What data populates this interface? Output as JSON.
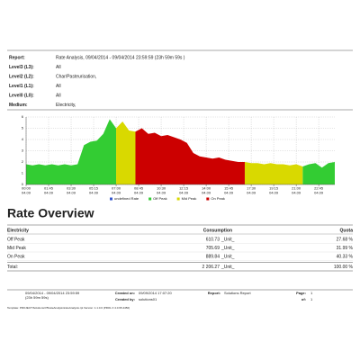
{
  "header": {
    "rows": [
      {
        "label": "Report:",
        "value": "Rate Analysis, 09/04/2014 - 09/04/2014 23:59:59 (23h 59m 59s )"
      },
      {
        "label": "Level3 (L3):",
        "value": "All"
      },
      {
        "label": "Level2 (L2):",
        "value": "Char/Pasteurisation,"
      },
      {
        "label": "Level1 (L1):",
        "value": "All"
      },
      {
        "label": "Level0 (L0):",
        "value": "All"
      },
      {
        "label": "Medium:",
        "value": "Electricity,"
      }
    ]
  },
  "chart_data": {
    "type": "area",
    "x": [
      0,
      0.5,
      1,
      1.5,
      2,
      2.5,
      3,
      3.5,
      4,
      4.5,
      5,
      5.5,
      6,
      6.5,
      7,
      7.5,
      8,
      8.5,
      9,
      9.5,
      10,
      10.5,
      11,
      11.5,
      12,
      12.5,
      13,
      13.5,
      14,
      14.5,
      15,
      15.5,
      16,
      16.5,
      17,
      17.5,
      18,
      18.5,
      19,
      19.5,
      20,
      20.5,
      21,
      21.5,
      22,
      22.5,
      23,
      23.5,
      24
    ],
    "xlim": [
      0,
      24
    ],
    "xticks": [
      {
        "value": 0,
        "label": "00:00"
      },
      {
        "value": 1.75,
        "label": "01:45"
      },
      {
        "value": 3.5,
        "label": "03:30"
      },
      {
        "value": 5.25,
        "label": "05:15"
      },
      {
        "value": 7,
        "label": "07:00"
      },
      {
        "value": 8.75,
        "label": "08:45"
      },
      {
        "value": 10.5,
        "label": "10:30"
      },
      {
        "value": 12.25,
        "label": "12:15"
      },
      {
        "value": 14,
        "label": "14:00"
      },
      {
        "value": 15.75,
        "label": "15:45"
      },
      {
        "value": 17.5,
        "label": "17:30"
      },
      {
        "value": 19.25,
        "label": "19:15"
      },
      {
        "value": 21,
        "label": "21:00"
      },
      {
        "value": 22.75,
        "label": "22:45"
      }
    ],
    "xtick_dates": [
      "04.09",
      "04.09",
      "04.09",
      "04.09",
      "04.09",
      "04.09",
      "04.09",
      "04.09",
      "04.09",
      "04.09",
      "04.09",
      "04.09",
      "04.09",
      "04.09"
    ],
    "ylim": [
      0,
      6
    ],
    "yticks": [
      0,
      1,
      2,
      3,
      4,
      5,
      6
    ],
    "grid": true,
    "legend": "bottom",
    "series": [
      {
        "name": "undefined Rate",
        "color": "#3355cc",
        "values": [
          null,
          null,
          null,
          null,
          null,
          null,
          null,
          null,
          null,
          null,
          null,
          null,
          null,
          null,
          null,
          null,
          null,
          null,
          null,
          null,
          null,
          null,
          null,
          null,
          null,
          null,
          null,
          null,
          null,
          null,
          null,
          null,
          null,
          null,
          null,
          null,
          null,
          null,
          null,
          null,
          null,
          null,
          null,
          null,
          null,
          null,
          null,
          null,
          null
        ]
      },
      {
        "name": "Off Peak",
        "color": "#33cc33",
        "values": [
          1.8,
          1.7,
          1.8,
          1.7,
          1.8,
          1.7,
          1.8,
          1.7,
          1.8,
          3.5,
          3.8,
          3.9,
          4.5,
          5.8,
          5.0,
          null,
          null,
          null,
          null,
          null,
          null,
          null,
          null,
          null,
          null,
          null,
          null,
          null,
          null,
          null,
          null,
          null,
          null,
          null,
          null,
          null,
          null,
          null,
          null,
          null,
          null,
          null,
          null,
          1.6,
          1.8,
          1.9,
          1.5,
          1.9,
          2.0
        ]
      },
      {
        "name": "Mid Peak",
        "color": "#d9d900",
        "values": [
          null,
          null,
          null,
          null,
          null,
          null,
          null,
          null,
          null,
          null,
          null,
          null,
          null,
          null,
          5.0,
          5.6,
          4.8,
          4.7,
          null,
          null,
          null,
          null,
          null,
          null,
          null,
          null,
          null,
          null,
          null,
          null,
          null,
          null,
          null,
          null,
          2.0,
          1.9,
          1.9,
          1.8,
          1.9,
          1.8,
          1.8,
          1.7,
          1.8,
          1.6,
          null,
          null,
          null,
          null,
          null
        ]
      },
      {
        "name": "On Peak",
        "color": "#cc0000",
        "values": [
          null,
          null,
          null,
          null,
          null,
          null,
          null,
          null,
          null,
          null,
          null,
          null,
          null,
          null,
          null,
          null,
          null,
          4.7,
          5.0,
          4.5,
          4.6,
          4.3,
          4.4,
          4.2,
          4.0,
          3.7,
          2.8,
          2.5,
          2.4,
          2.3,
          2.4,
          2.2,
          2.1,
          2.0,
          2.0,
          null,
          null,
          null,
          null,
          null,
          null,
          null,
          null,
          null,
          null,
          null,
          null,
          null,
          null
        ]
      }
    ]
  },
  "section_title": "Rate Overview",
  "table": {
    "columns": [
      "Electricity",
      "Consumption",
      "Quota"
    ],
    "rows": [
      [
        "Off Peak",
        "610.73",
        "_Unit_",
        "27.68 %"
      ],
      [
        "Mid Peak",
        "705.69",
        "_Unit_",
        "31.99 %"
      ],
      [
        "On Peak",
        "889.84",
        "_Unit_",
        "40.33 %"
      ],
      [
        "Total:",
        "2 206.27",
        "_Unit_",
        "100.00 %"
      ]
    ]
  },
  "footer": {
    "period": "09/04/2014 - 09/04/2014 23:59:59",
    "duration": "(23h 59m 59s)",
    "created_on_label": "Created on:",
    "created_on": "09/09/2014 17:07:20",
    "report_label": "Report:",
    "report": "Solutions Report",
    "page_label": "Page:",
    "page": "1",
    "created_by_label": "Created by:",
    "created_by": "solutions01",
    "of_label": "of:",
    "of": "1",
    "template": "Template: PROJECT\\Solutions\\V5\\rateAnalysis\\rateAnalysis.rpt Version: 1.1.0.0 (PROL F 4.0.95.4450)"
  }
}
